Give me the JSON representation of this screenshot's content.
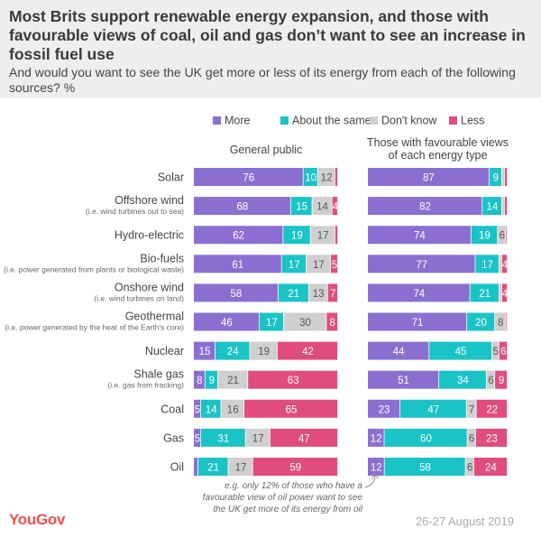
{
  "header": {
    "title": "Most Brits support renewable energy expansion, and those with favourable views of coal, oil and gas don’t want to see an increase in fossil fuel use",
    "subtitle": "And would you want to see the UK get more or less of its energy from each of the following sources? %"
  },
  "footer": {
    "logo": "YouGov",
    "date": "26-27 August 2019"
  },
  "annotation": [
    "e.g. only 12% of those who have a",
    "favourable view of oil power want to see",
    "the UK get more of its energy from oil"
  ],
  "colors": {
    "More": "#8b6fd0",
    "About the same": "#1ac3c6",
    "Don't know": "#cfcfcf",
    "Less": "#e04d7c"
  },
  "chart_data": {
    "type": "bar",
    "orientation": "horizontal",
    "stacked": true,
    "legend": [
      "More",
      "About the same",
      "Don't know",
      "Less"
    ],
    "legend_position": "top-right",
    "categories": [
      {
        "label": "Solar",
        "sub": ""
      },
      {
        "label": "Offshore wind",
        "sub": "(i.e. wind turbines out to sea)"
      },
      {
        "label": "Hydro-electric",
        "sub": ""
      },
      {
        "label": "Bio-fuels",
        "sub": "(i.e. power generated from plants or biological waste)"
      },
      {
        "label": "Onshore wind",
        "sub": "(i.e. wind turbines on land)"
      },
      {
        "label": "Geothermal",
        "sub": "(i.e. power generated by the heat of the Earth's core)"
      },
      {
        "label": "Nuclear",
        "sub": ""
      },
      {
        "label": "Shale gas",
        "sub": "(i.e. gas from fracking)"
      },
      {
        "label": "Coal",
        "sub": ""
      },
      {
        "label": "Gas",
        "sub": ""
      },
      {
        "label": "Oil",
        "sub": ""
      }
    ],
    "panels": [
      {
        "title": [
          "General public"
        ],
        "values": [
          [
            76,
            10,
            12,
            2
          ],
          [
            68,
            15,
            14,
            4
          ],
          [
            62,
            19,
            17,
            2
          ],
          [
            61,
            17,
            17,
            5
          ],
          [
            58,
            21,
            13,
            7
          ],
          [
            46,
            17,
            30,
            8
          ],
          [
            15,
            24,
            19,
            42
          ],
          [
            8,
            9,
            21,
            63
          ],
          [
            5,
            14,
            16,
            65
          ],
          [
            5,
            31,
            17,
            47
          ],
          [
            3,
            21,
            17,
            59
          ]
        ],
        "labels": [
          [
            "76",
            "10",
            "12",
            ""
          ],
          [
            "68",
            "15",
            "14",
            "4"
          ],
          [
            "62",
            "19",
            "17",
            ""
          ],
          [
            "61",
            "17",
            "17",
            "5"
          ],
          [
            "58",
            "21",
            "13",
            "7"
          ],
          [
            "46",
            "17",
            "30",
            "8"
          ],
          [
            "15",
            "24",
            "19",
            "42"
          ],
          [
            "8",
            "9",
            "21",
            "63"
          ],
          [
            "5",
            "14",
            "16",
            "65"
          ],
          [
            "5",
            "31",
            "17",
            "47"
          ],
          [
            "",
            "21",
            "17",
            "59"
          ]
        ]
      },
      {
        "title": [
          "Those with favourable views",
          "of each energy type"
        ],
        "values": [
          [
            87,
            9,
            2,
            2
          ],
          [
            82,
            14,
            2,
            2
          ],
          [
            74,
            19,
            6,
            1
          ],
          [
            77,
            17,
            2,
            4
          ],
          [
            74,
            21,
            2,
            4
          ],
          [
            71,
            20,
            8,
            1
          ],
          [
            44,
            45,
            5,
            6
          ],
          [
            51,
            34,
            6,
            9
          ],
          [
            23,
            47,
            7,
            22
          ],
          [
            12,
            60,
            6,
            23
          ],
          [
            12,
            58,
            6,
            24
          ]
        ],
        "labels": [
          [
            "87",
            "9",
            "",
            ""
          ],
          [
            "82",
            "14",
            "",
            ""
          ],
          [
            "74",
            "19",
            "6",
            ""
          ],
          [
            "77",
            "17",
            "",
            "4"
          ],
          [
            "74",
            "21",
            "",
            "4"
          ],
          [
            "71",
            "20",
            "8",
            ""
          ],
          [
            "44",
            "45",
            "5",
            "6"
          ],
          [
            "51",
            "34",
            "6",
            "9"
          ],
          [
            "23",
            "47",
            "7",
            "22"
          ],
          [
            "12",
            "60",
            "6",
            "23"
          ],
          [
            "12",
            "58",
            "6",
            "24"
          ]
        ]
      }
    ]
  }
}
